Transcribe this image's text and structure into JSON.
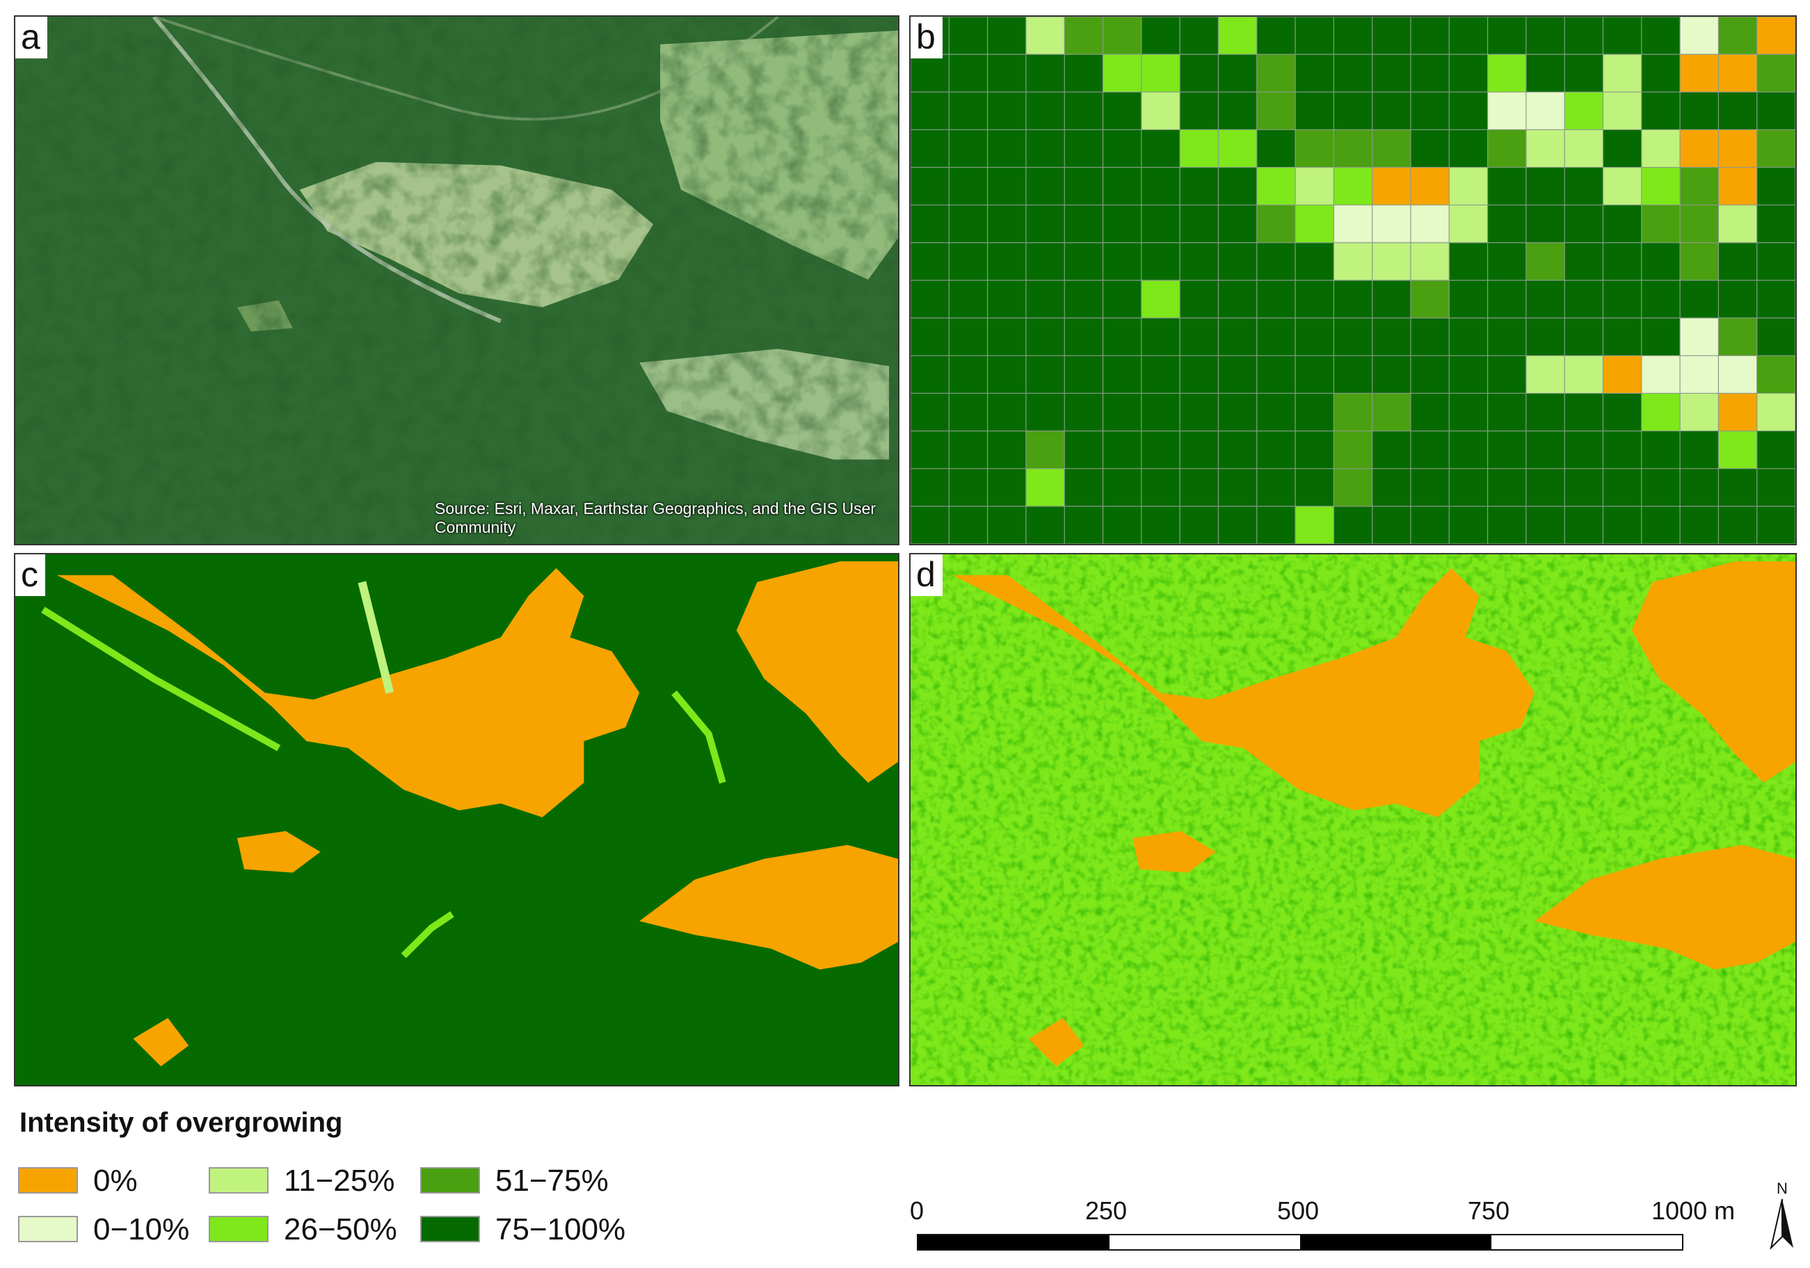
{
  "panels": {
    "a": {
      "label": "a",
      "credit": "Source: Esri, Maxar, Earthstar Geographics, and the GIS User Community"
    },
    "b": {
      "label": "b"
    },
    "c": {
      "label": "c"
    },
    "d": {
      "label": "d"
    }
  },
  "legend": {
    "title": "Intensity of overgrowing",
    "items": [
      {
        "label": "0%",
        "color": "#f7a400"
      },
      {
        "label": "0−10%",
        "color": "#e6f9c8"
      },
      {
        "label": "11−25%",
        "color": "#c0f27e"
      },
      {
        "label": "26−50%",
        "color": "#7ee81a"
      },
      {
        "label": "51−75%",
        "color": "#4aa010"
      },
      {
        "label": "75−100%",
        "color": "#056b00"
      }
    ]
  },
  "scale_bar": {
    "labels": [
      "0",
      "250",
      "500",
      "750",
      "1000 m"
    ],
    "north_label": "N"
  }
}
